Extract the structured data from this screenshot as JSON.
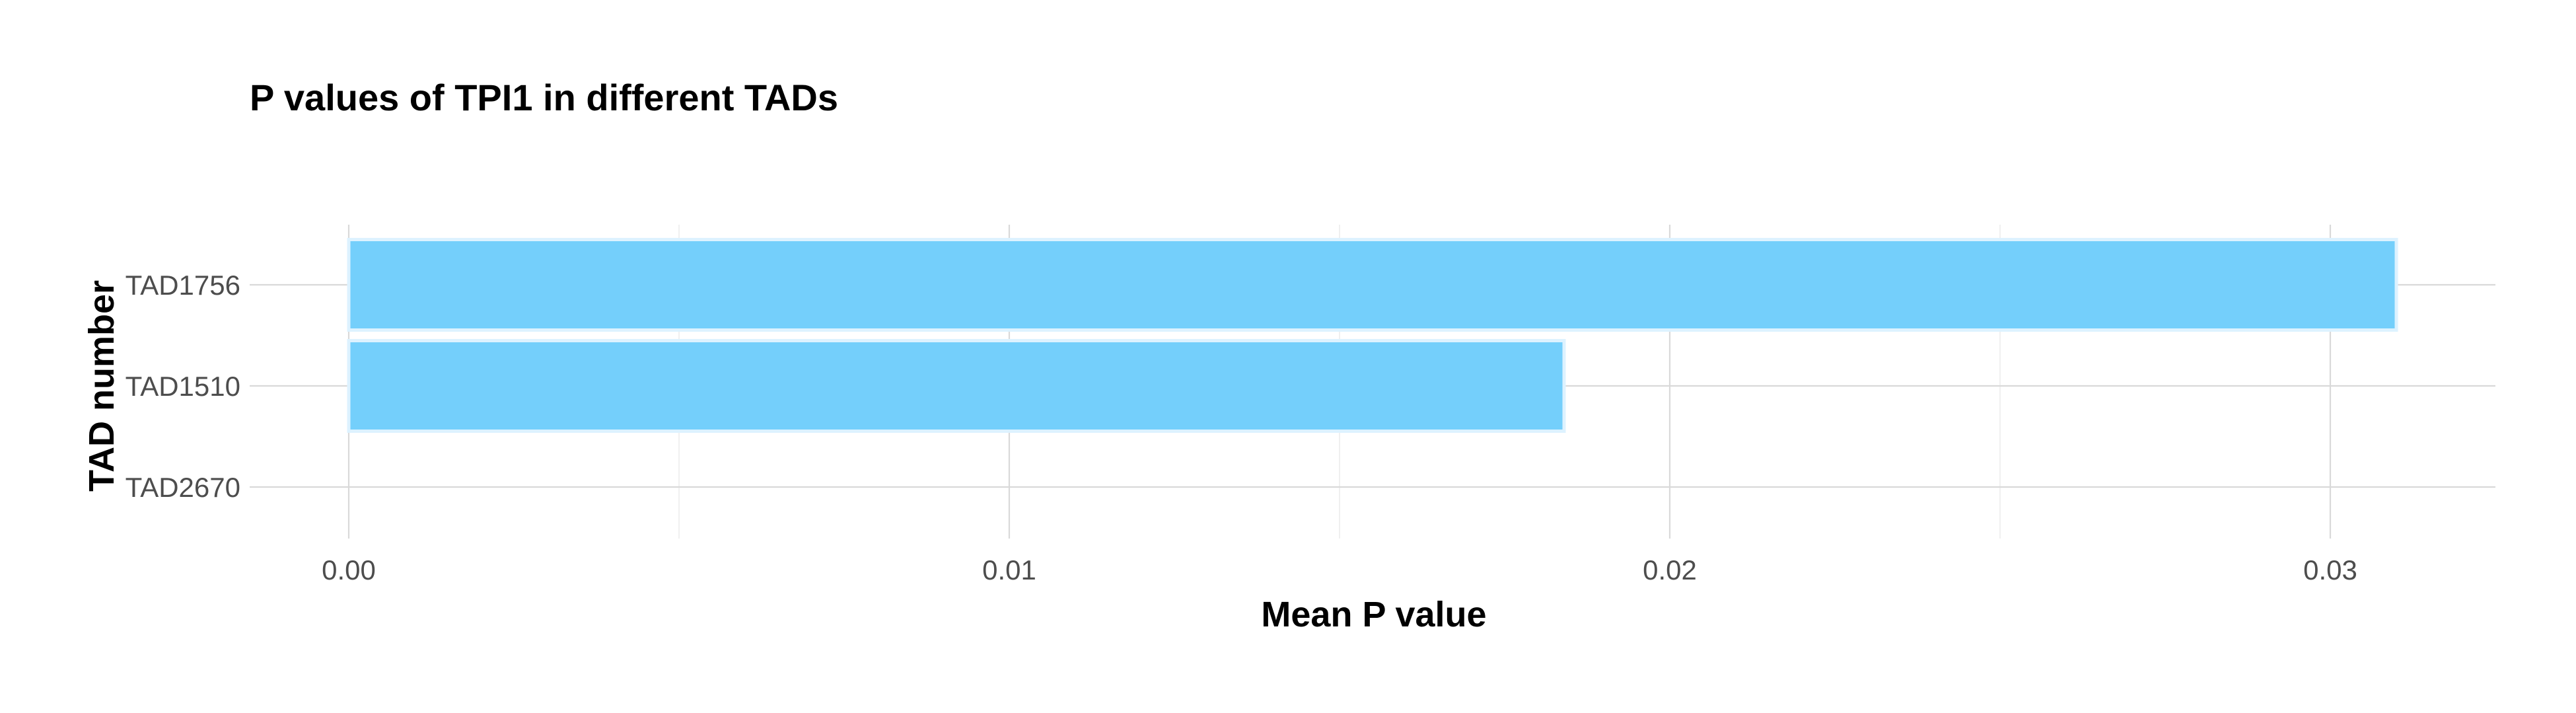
{
  "chart_data": {
    "type": "bar",
    "orientation": "horizontal",
    "title": "P values of TPI1 in different TADs",
    "xlabel": "Mean P value",
    "ylabel": "TAD number",
    "categories": [
      "TAD1756",
      "TAD1510",
      "TAD2670"
    ],
    "values": [
      0.031,
      0.0184,
      0.0
    ],
    "xlim": [
      -0.0015,
      0.0325
    ],
    "x_ticks": [
      0.0,
      0.01,
      0.02,
      0.03
    ],
    "x_tick_labels": [
      "0.00",
      "0.01",
      "0.02",
      "0.03"
    ],
    "grid": true,
    "legend": "none",
    "colors": {
      "bar_fill": "#74cffb",
      "bar_stroke": "#ddf2ff"
    }
  }
}
